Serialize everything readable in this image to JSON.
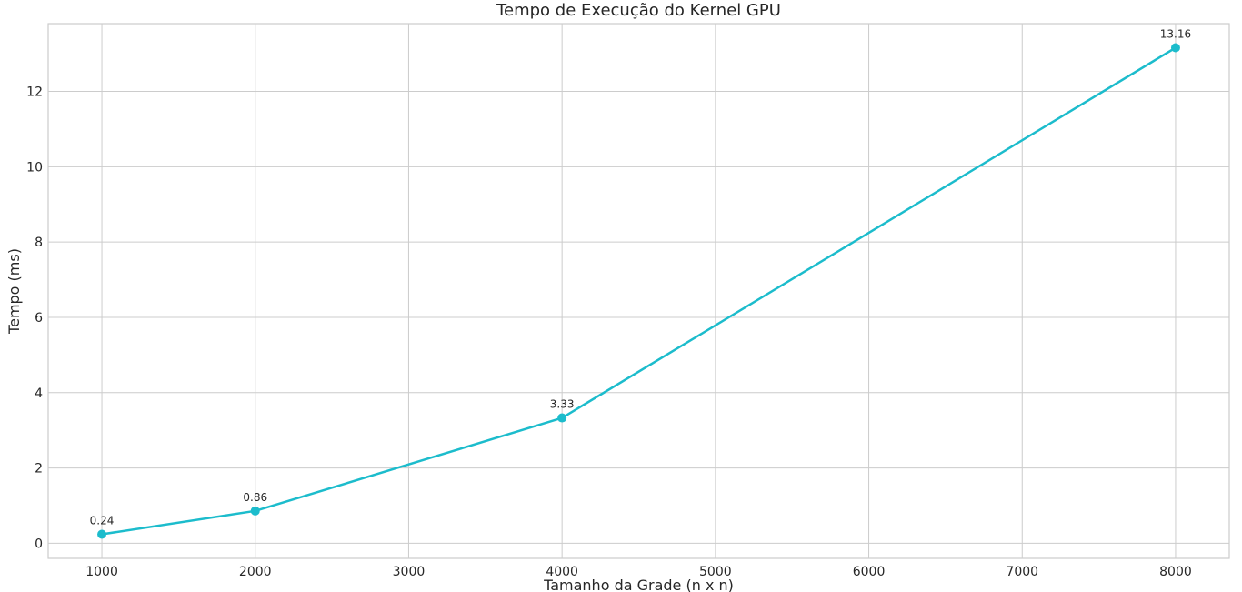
{
  "chart_data": {
    "type": "line",
    "title": "Tempo de Execução do Kernel GPU",
    "xlabel": "Tamanho da Grade (n x n)",
    "ylabel": "Tempo (ms)",
    "xlim": [
      650,
      8350
    ],
    "ylim": [
      -0.4,
      13.8
    ],
    "xticks": [
      1000,
      2000,
      3000,
      4000,
      5000,
      6000,
      7000,
      8000
    ],
    "yticks": [
      0,
      2,
      4,
      6,
      8,
      10,
      12
    ],
    "grid": true,
    "series": [
      {
        "color": "#1cbccc",
        "x": [
          1000,
          2000,
          4000,
          8000
        ],
        "y": [
          0.24,
          0.86,
          3.33,
          13.16
        ],
        "labels": [
          "0.24",
          "0.86",
          "3.33",
          "13.16"
        ]
      }
    ]
  }
}
